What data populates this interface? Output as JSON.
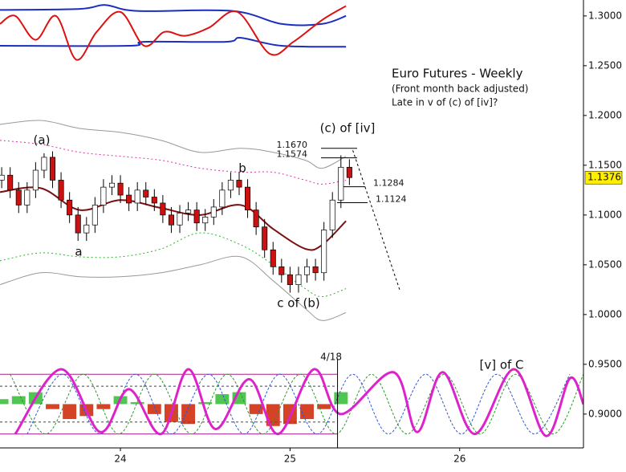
{
  "chart_data": {
    "type": "candlestick",
    "title": "Euro Futures - Weekly",
    "subtitle": "(Front month back adjusted)",
    "note": "Late in v of (c) of [iv]?",
    "x": [
      23.3,
      23.35,
      23.4,
      23.45,
      23.5,
      23.55,
      23.6,
      23.65,
      23.7,
      23.75,
      23.8,
      23.85,
      23.9,
      23.95,
      24.0,
      24.05,
      24.1,
      24.15,
      24.2,
      24.25,
      24.3,
      24.35,
      24.4,
      24.45,
      24.5,
      24.55,
      24.6,
      24.65,
      24.7,
      24.75,
      24.8,
      24.85,
      24.9,
      24.95,
      25.0,
      25.05,
      25.1,
      25.15,
      25.2,
      25.25,
      25.3,
      25.35
    ],
    "open": [
      1.135,
      1.14,
      1.125,
      1.11,
      1.125,
      1.145,
      1.158,
      1.135,
      1.115,
      1.1,
      1.082,
      1.09,
      1.11,
      1.128,
      1.132,
      1.12,
      1.112,
      1.125,
      1.118,
      1.112,
      1.1,
      1.09,
      1.102,
      1.105,
      1.092,
      1.098,
      1.108,
      1.125,
      1.135,
      1.128,
      1.105,
      1.088,
      1.065,
      1.048,
      1.04,
      1.03,
      1.04,
      1.048,
      1.042,
      1.085,
      1.115,
      1.148
    ],
    "high": [
      1.148,
      1.148,
      1.133,
      1.133,
      1.153,
      1.162,
      1.164,
      1.143,
      1.123,
      1.108,
      1.098,
      1.118,
      1.136,
      1.14,
      1.14,
      1.128,
      1.133,
      1.133,
      1.126,
      1.12,
      1.108,
      1.11,
      1.113,
      1.113,
      1.106,
      1.116,
      1.133,
      1.143,
      1.143,
      1.136,
      1.113,
      1.096,
      1.073,
      1.056,
      1.048,
      1.048,
      1.056,
      1.056,
      1.093,
      1.123,
      1.16,
      1.156
    ],
    "low": [
      1.127,
      1.117,
      1.102,
      1.102,
      1.117,
      1.137,
      1.127,
      1.107,
      1.092,
      1.074,
      1.074,
      1.082,
      1.102,
      1.12,
      1.112,
      1.104,
      1.104,
      1.11,
      1.104,
      1.092,
      1.082,
      1.082,
      1.094,
      1.084,
      1.084,
      1.09,
      1.1,
      1.117,
      1.12,
      1.097,
      1.08,
      1.057,
      1.04,
      1.032,
      1.022,
      1.022,
      1.032,
      1.034,
      1.034,
      1.077,
      1.107,
      1.13
    ],
    "close": [
      1.14,
      1.125,
      1.11,
      1.125,
      1.145,
      1.158,
      1.135,
      1.115,
      1.1,
      1.082,
      1.09,
      1.11,
      1.128,
      1.132,
      1.12,
      1.112,
      1.125,
      1.118,
      1.112,
      1.1,
      1.09,
      1.102,
      1.105,
      1.092,
      1.098,
      1.108,
      1.125,
      1.135,
      1.128,
      1.105,
      1.088,
      1.065,
      1.048,
      1.04,
      1.03,
      1.04,
      1.048,
      1.042,
      1.085,
      1.115,
      1.148,
      1.1376
    ],
    "up_color": "#ffffff",
    "down_color": "#cc1111",
    "xlim": [
      23.29,
      26.73
    ],
    "ylim": [
      0.866,
      1.316
    ],
    "xticks": [
      24,
      25,
      26
    ],
    "yticks": [
      {
        "value": 0.9,
        "label": "0.9000"
      },
      {
        "value": 0.95,
        "label": "0.9500"
      },
      {
        "value": 1.0,
        "label": "1.0000"
      },
      {
        "value": 1.05,
        "label": "1.0500"
      },
      {
        "value": 1.1,
        "label": "1.1000"
      },
      {
        "value": 1.15,
        "label": "1.1500"
      },
      {
        "value": 1.2,
        "label": "1.2000"
      },
      {
        "value": 1.25,
        "label": "1.2500"
      },
      {
        "value": 1.3,
        "label": "1.3000"
      }
    ],
    "last_price": {
      "value": 1.1376,
      "label": "1.1376"
    },
    "levels": [
      {
        "value": 1.167,
        "label": "1.1670"
      },
      {
        "value": 1.1574,
        "label": "1.1574"
      },
      {
        "value": 1.1284,
        "label": "1.1284"
      },
      {
        "value": 1.1124,
        "label": "1.1124"
      }
    ],
    "annotations": [
      "(a)",
      "a",
      "b",
      "c of (b)",
      "(c) of [iv]",
      "[v] of C"
    ],
    "marker": {
      "x": 25.28,
      "label": "4/18"
    },
    "rails": [
      0.94,
      0.88
    ],
    "inner_rails": [
      0.928,
      0.892
    ],
    "series": [
      {
        "type": "line",
        "color": "#999999",
        "dash": "",
        "width": 1,
        "x": [
          23.29,
          23.53,
          23.76,
          24.0,
          24.24,
          24.47,
          24.71,
          24.9,
          25.09,
          25.19,
          25.33
        ],
        "values": [
          1.191,
          1.195,
          1.187,
          1.183,
          1.175,
          1.163,
          1.167,
          1.163,
          1.155,
          1.147,
          1.159
        ]
      },
      {
        "type": "line",
        "color": "#dd33aa",
        "dash": "2 3",
        "width": 1,
        "x": [
          23.29,
          23.53,
          23.76,
          24.0,
          24.24,
          24.47,
          24.71,
          24.9,
          25.09,
          25.19,
          25.33
        ],
        "values": [
          1.175,
          1.171,
          1.163,
          1.159,
          1.155,
          1.147,
          1.143,
          1.143,
          1.135,
          1.131,
          1.135
        ]
      },
      {
        "type": "line",
        "color": "#7a1010",
        "dash": "",
        "width": 2,
        "x": [
          23.29,
          23.53,
          23.76,
          24.0,
          24.24,
          24.47,
          24.71,
          24.9,
          25.09,
          25.19,
          25.33
        ],
        "values": [
          1.123,
          1.127,
          1.105,
          1.115,
          1.107,
          1.1,
          1.11,
          1.086,
          1.066,
          1.07,
          1.094
        ]
      },
      {
        "type": "line",
        "color": "#22bb22",
        "dash": "2 3",
        "width": 1,
        "x": [
          23.29,
          23.53,
          23.76,
          24.0,
          24.24,
          24.47,
          24.71,
          24.9,
          25.09,
          25.19,
          25.33
        ],
        "values": [
          1.054,
          1.062,
          1.058,
          1.058,
          1.066,
          1.082,
          1.07,
          1.05,
          1.026,
          1.018,
          1.026
        ]
      },
      {
        "type": "line",
        "color": "#999999",
        "dash": "",
        "width": 1,
        "x": [
          23.29,
          23.53,
          23.76,
          24.0,
          24.24,
          24.47,
          24.71,
          24.9,
          25.09,
          25.19,
          25.33
        ],
        "values": [
          1.03,
          1.042,
          1.038,
          1.038,
          1.042,
          1.05,
          1.058,
          1.034,
          1.006,
          0.994,
          1.002
        ]
      },
      {
        "type": "line",
        "color": "#000000",
        "dash": "3 3",
        "width": 1,
        "x": [
          25.37,
          25.65
        ],
        "values": [
          1.165,
          1.023
        ]
      },
      {
        "type": "line",
        "color": "#1a2fbf",
        "dash": "",
        "width": 2,
        "x": [
          23.29,
          23.76,
          23.91,
          24.1,
          24.66,
          24.95,
          25.19,
          25.33
        ],
        "values": [
          1.306,
          1.307,
          1.311,
          1.305,
          1.305,
          1.292,
          1.292,
          1.3
        ]
      },
      {
        "type": "line",
        "color": "#1a2fbf",
        "dash": "",
        "width": 2,
        "x": [
          23.29,
          24.05,
          24.14,
          24.62,
          24.71,
          24.95,
          25.33
        ],
        "values": [
          1.27,
          1.27,
          1.274,
          1.274,
          1.278,
          1.27,
          1.269
        ]
      },
      {
        "type": "line",
        "color": "#dd1111",
        "dash": "",
        "width": 2,
        "x": [
          23.29,
          23.38,
          23.5,
          23.62,
          23.74,
          23.86,
          24.0,
          24.14,
          24.26,
          24.38,
          24.52,
          24.69,
          24.88,
          25.02,
          25.19,
          25.33
        ],
        "values": [
          1.292,
          1.3,
          1.276,
          1.3,
          1.256,
          1.284,
          1.304,
          1.27,
          1.284,
          1.28,
          1.288,
          1.304,
          1.262,
          1.274,
          1.296,
          1.31
        ]
      },
      {
        "type": "bar",
        "color": "#33bb33",
        "negative_color": "#cc2200",
        "x": [
          23.3,
          23.4,
          23.5,
          23.6,
          23.7,
          23.8,
          23.9,
          24.0,
          24.1,
          24.2,
          24.3,
          24.4,
          24.5,
          24.6,
          24.7,
          24.8,
          24.9,
          25.0,
          25.1,
          25.2,
          25.3
        ],
        "values": [
          0.915,
          0.918,
          0.922,
          0.905,
          0.895,
          0.898,
          0.905,
          0.918,
          0.912,
          0.9,
          0.892,
          0.89,
          0.912,
          0.92,
          0.922,
          0.9,
          0.888,
          0.89,
          0.895,
          0.905,
          0.922
        ]
      },
      {
        "type": "line",
        "color": "#2a9a2a",
        "dash": "3 2",
        "width": 1,
        "x": [
          23.35,
          23.56,
          23.78,
          23.99,
          24.2,
          24.42,
          24.63,
          24.84,
          25.06,
          25.27,
          25.48,
          25.69,
          25.91,
          26.12,
          26.33,
          26.55,
          26.73
        ],
        "values": [
          0.94,
          0.88,
          0.94,
          0.88,
          0.94,
          0.88,
          0.94,
          0.88,
          0.94,
          0.88,
          0.94,
          0.88,
          0.94,
          0.88,
          0.94,
          0.88,
          0.94
        ]
      },
      {
        "type": "line",
        "color": "#3355cc",
        "dash": "3 2",
        "width": 1,
        "x": [
          23.45,
          23.66,
          23.88,
          24.09,
          24.3,
          24.52,
          24.73,
          24.94,
          25.16,
          25.37,
          25.58,
          25.8,
          26.01,
          26.22,
          26.44,
          26.65
        ],
        "values": [
          0.88,
          0.94,
          0.88,
          0.94,
          0.88,
          0.94,
          0.88,
          0.94,
          0.88,
          0.94,
          0.88,
          0.94,
          0.88,
          0.94,
          0.88,
          0.94
        ]
      },
      {
        "type": "line",
        "color": "#dd22cc",
        "dash": "",
        "width": 3,
        "x": [
          23.38,
          23.65,
          23.88,
          24.05,
          24.24,
          24.4,
          24.56,
          24.76,
          24.93,
          25.14,
          25.3,
          25.61,
          25.75,
          25.9,
          26.09,
          26.32,
          26.51,
          26.65,
          26.73
        ],
        "values": [
          0.88,
          0.945,
          0.882,
          0.925,
          0.88,
          0.945,
          0.885,
          0.935,
          0.88,
          0.945,
          0.9,
          0.942,
          0.882,
          0.942,
          0.88,
          0.945,
          0.878,
          0.936,
          0.91
        ]
      }
    ]
  }
}
